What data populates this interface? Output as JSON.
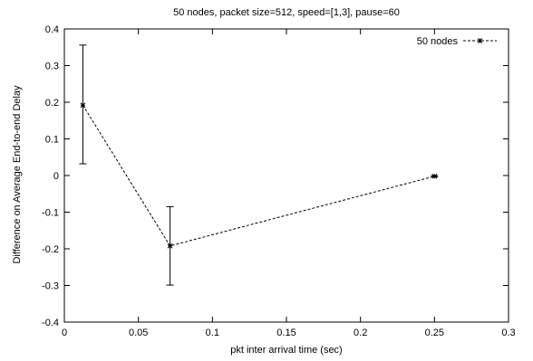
{
  "chart_data": {
    "type": "line",
    "title": "50 nodes, packet size=512, speed=[1,3], pause=60",
    "xlabel": "pkt inter arrival time (sec)",
    "ylabel": "Difference on Average End-to-end Delay",
    "xlim": [
      0,
      0.3
    ],
    "ylim": [
      -0.4,
      0.4
    ],
    "xticks": [
      0,
      0.05,
      0.1,
      0.15,
      0.2,
      0.25,
      0.3
    ],
    "yticks": [
      -0.4,
      -0.3,
      -0.2,
      -0.1,
      0,
      0.1,
      0.2,
      0.3,
      0.4
    ],
    "xtick_labels": [
      "0",
      "0.05",
      "0.1",
      "0.15",
      "0.2",
      "0.25",
      "0.3"
    ],
    "ytick_labels": [
      "-0.4",
      "-0.3",
      "-0.2",
      "-0.1",
      "0",
      "0.1",
      "0.2",
      "0.3",
      "0.4"
    ],
    "grid": false,
    "legend_position": "top-right",
    "series": [
      {
        "name": "50 nodes",
        "line_style": "dashed",
        "marker": "star",
        "color": "#000000",
        "points": [
          {
            "x": 0.0125,
            "y": 0.192,
            "err_low": 0.032,
            "err_high": 0.356
          },
          {
            "x": 0.0714,
            "y": -0.192,
            "err_low": -0.299,
            "err_high": -0.085
          },
          {
            "x": 0.25,
            "y": -0.002,
            "err_low": -0.004,
            "err_high": 0.0
          }
        ]
      }
    ]
  }
}
